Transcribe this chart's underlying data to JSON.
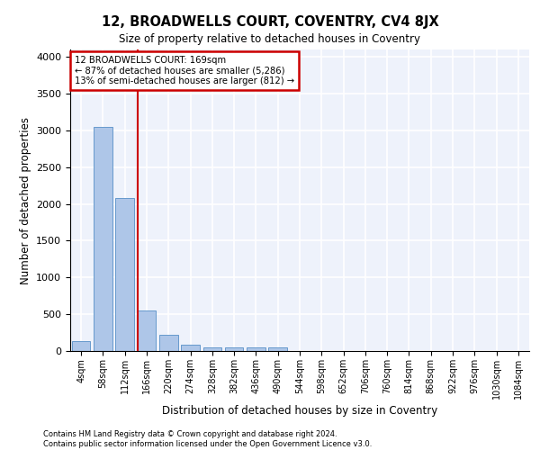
{
  "title": "12, BROADWELLS COURT, COVENTRY, CV4 8JX",
  "subtitle": "Size of property relative to detached houses in Coventry",
  "xlabel": "Distribution of detached houses by size in Coventry",
  "ylabel": "Number of detached properties",
  "bin_labels": [
    "4sqm",
    "58sqm",
    "112sqm",
    "166sqm",
    "220sqm",
    "274sqm",
    "328sqm",
    "382sqm",
    "436sqm",
    "490sqm",
    "544sqm",
    "598sqm",
    "652sqm",
    "706sqm",
    "760sqm",
    "814sqm",
    "868sqm",
    "922sqm",
    "976sqm",
    "1030sqm",
    "1084sqm"
  ],
  "bar_heights": [
    140,
    3050,
    2080,
    550,
    220,
    80,
    55,
    50,
    45,
    45,
    0,
    0,
    0,
    0,
    0,
    0,
    0,
    0,
    0,
    0,
    0
  ],
  "bar_color": "#aec6e8",
  "bar_edge_color": "#6699cc",
  "background_color": "#eef2fb",
  "grid_color": "#ffffff",
  "ylim": [
    0,
    4100
  ],
  "yticks": [
    0,
    500,
    1000,
    1500,
    2000,
    2500,
    3000,
    3500,
    4000
  ],
  "marker_bin_index": 3,
  "annotation_title": "12 BROADWELLS COURT: 169sqm",
  "annotation_line1": "← 87% of detached houses are smaller (5,286)",
  "annotation_line2": "13% of semi-detached houses are larger (812) →",
  "annotation_box_color": "#cc0000",
  "footer_line1": "Contains HM Land Registry data © Crown copyright and database right 2024.",
  "footer_line2": "Contains public sector information licensed under the Open Government Licence v3.0."
}
